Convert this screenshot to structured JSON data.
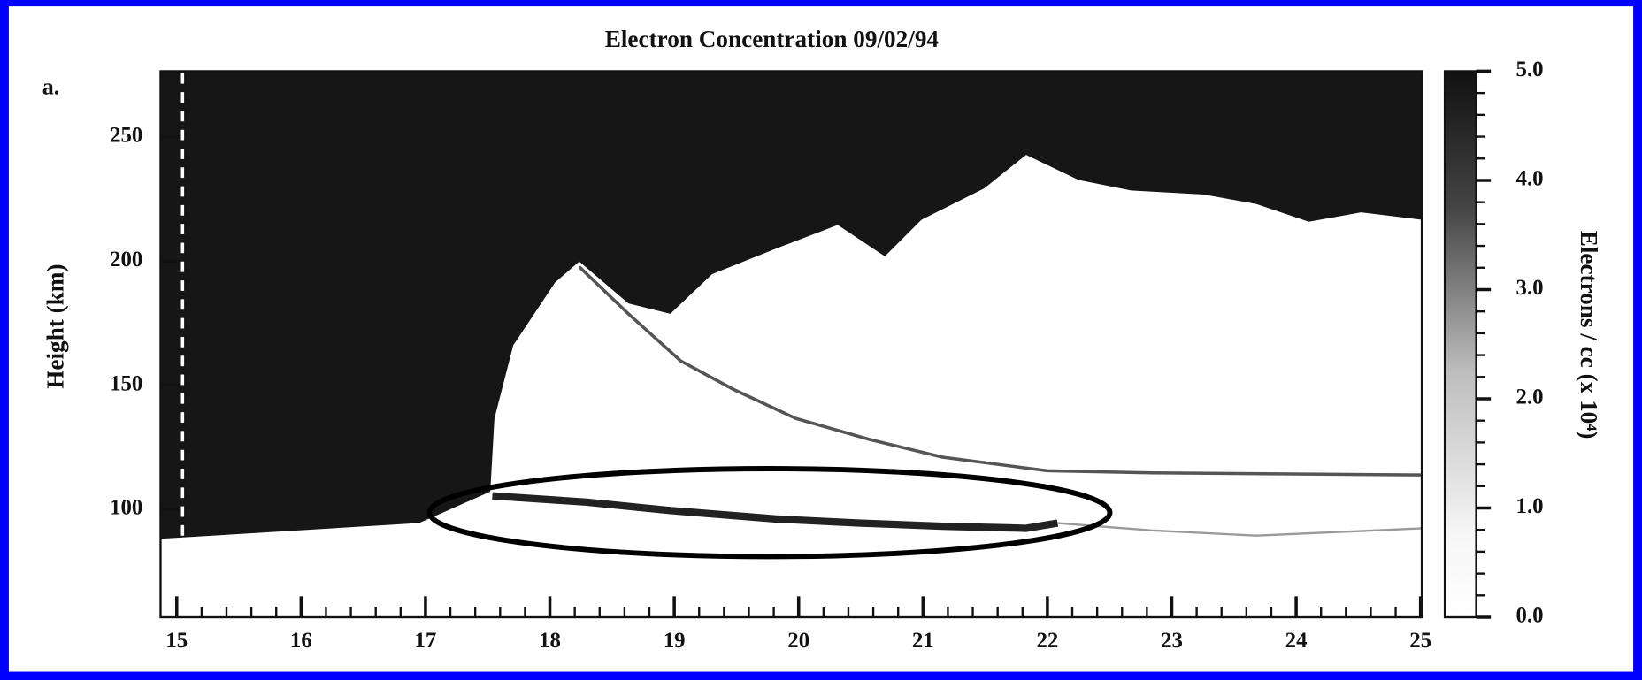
{
  "chart_data": {
    "type": "heatmap",
    "title": "Electron Concentration 09/02/94",
    "panel_label": "a.",
    "y_label": "Height (km)",
    "colorbar_label": "Electrons / cc (x 10⁴)",
    "xlim": [
      14.87,
      25.01
    ],
    "xticks": [
      15,
      16,
      17,
      18,
      19,
      20,
      21,
      22,
      23,
      24,
      25
    ],
    "ylim": [
      56.5,
      276.5
    ],
    "yticks": [
      100,
      150,
      200,
      250
    ],
    "clim": [
      0,
      5
    ],
    "cticks": [
      {
        "value": 0,
        "label": "0.0"
      },
      {
        "value": 1,
        "label": "1.0"
      },
      {
        "value": 2,
        "label": "2.0"
      },
      {
        "value": 3,
        "label": "3.0"
      },
      {
        "value": 4,
        "label": "4.0"
      },
      {
        "value": 5,
        "label": "5.0"
      }
    ],
    "colormap": [
      "#ffffff",
      "#111111"
    ]
  }
}
